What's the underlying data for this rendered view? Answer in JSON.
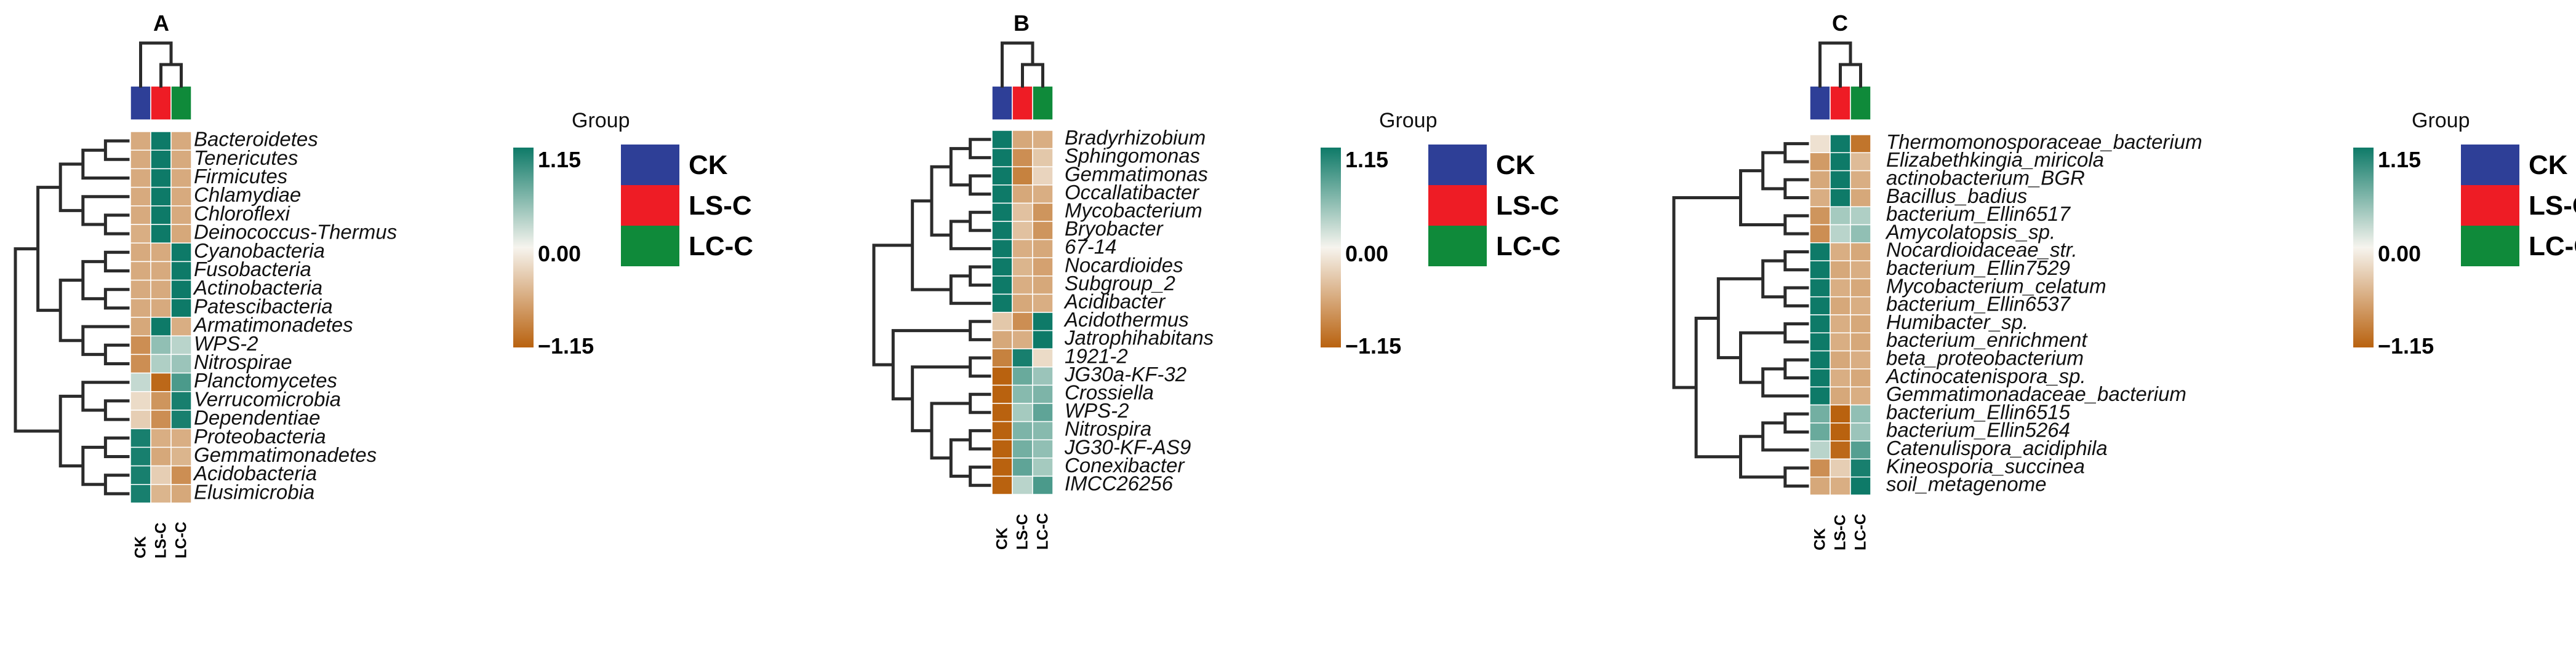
{
  "chart_data": [
    {
      "type": "heatmap",
      "title": "A",
      "columns": [
        "CK",
        "LS-C",
        "LC-C"
      ],
      "rows": [
        "Bacteroidetes",
        "Tenericutes",
        "Firmicutes",
        "Chlamydiae",
        "Chloroflexi",
        "Deinococcus-Thermus",
        "Cyanobacteria",
        "Fusobacteria",
        "Actinobacteria",
        "Patescibacteria",
        "Armatimonadetes",
        "WPS-2",
        "Nitrospirae",
        "Planctomycetes",
        "Verrucomicrobia",
        "Dependentiae",
        "Proteobacteria",
        "Gemmatimonadetes",
        "Acidobacteria",
        "Elusimicrobia"
      ],
      "values": [
        [
          -0.58,
          1.15,
          -0.58
        ],
        [
          -0.58,
          1.15,
          -0.58
        ],
        [
          -0.58,
          1.15,
          -0.58
        ],
        [
          -0.58,
          1.15,
          -0.58
        ],
        [
          -0.58,
          1.15,
          -0.58
        ],
        [
          -0.55,
          1.15,
          -0.6
        ],
        [
          -0.58,
          -0.58,
          1.15
        ],
        [
          -0.58,
          -0.58,
          1.15
        ],
        [
          -0.58,
          -0.58,
          1.15
        ],
        [
          -0.58,
          -0.58,
          1.15
        ],
        [
          -0.6,
          1.15,
          -0.55
        ],
        [
          -0.8,
          0.5,
          0.3
        ],
        [
          -0.8,
          0.35,
          0.45
        ],
        [
          0.25,
          -1.1,
          0.85
        ],
        [
          -0.2,
          -0.75,
          1.1
        ],
        [
          -0.3,
          -0.8,
          1.1
        ],
        [
          1.1,
          -0.55,
          -0.55
        ],
        [
          1.1,
          -0.6,
          -0.5
        ],
        [
          1.1,
          -0.3,
          -0.8
        ],
        [
          1.1,
          -0.5,
          -0.6
        ]
      ],
      "col_order": "CK, LS-C, LC-C (LS-C and LC-C clustered together)"
    },
    {
      "type": "heatmap",
      "title": "B",
      "columns": [
        "CK",
        "LS-C",
        "LC-C"
      ],
      "rows": [
        "Bradyrhizobium",
        "Sphingomonas",
        "Gemmatimonas",
        "Occallatibacter",
        "Mycobacterium",
        "Bryobacter",
        "67-14",
        "Nocardioides",
        "Subgroup_2",
        "Acidibacter",
        "Acidothermus",
        "Jatrophihabitans",
        "1921-2",
        "JG30a-KF-32",
        "Crossiella",
        "WPS-2",
        "Nitrospira",
        "JG30-KF-AS9",
        "Conexibacter",
        "IMCC26256"
      ],
      "values": [
        [
          1.15,
          -0.6,
          -0.55
        ],
        [
          1.15,
          -0.8,
          -0.35
        ],
        [
          1.15,
          -0.9,
          -0.25
        ],
        [
          1.15,
          -0.6,
          -0.55
        ],
        [
          1.15,
          -0.4,
          -0.75
        ],
        [
          1.15,
          -0.4,
          -0.75
        ],
        [
          1.15,
          -0.55,
          -0.6
        ],
        [
          1.15,
          -0.5,
          -0.65
        ],
        [
          1.15,
          -0.55,
          -0.6
        ],
        [
          1.15,
          -0.6,
          -0.55
        ],
        [
          -0.35,
          -0.8,
          1.15
        ],
        [
          -0.6,
          -0.55,
          1.15
        ],
        [
          -0.9,
          1.1,
          -0.2
        ],
        [
          -1.15,
          0.7,
          0.45
        ],
        [
          -1.15,
          0.55,
          0.6
        ],
        [
          -1.15,
          0.4,
          0.75
        ],
        [
          -1.15,
          0.6,
          0.55
        ],
        [
          -1.15,
          0.65,
          0.5
        ],
        [
          -1.15,
          0.75,
          0.4
        ],
        [
          -1.15,
          0.3,
          0.85
        ]
      ]
    },
    {
      "type": "heatmap",
      "title": "C",
      "columns": [
        "CK",
        "LS-C",
        "LC-C"
      ],
      "rows": [
        "Thermomonosporaceae_bacterium",
        "Elizabethkingia_miricola",
        "actinobacterium_BGR",
        "Bacillus_badius",
        "bacterium_Ellin6517",
        "Amycolatopsis_sp.",
        "Nocardioidaceae_str.",
        "bacterium_Ellin7529",
        "Mycobacterium_celatum",
        "bacterium_Ellin6537",
        "Humibacter_sp.",
        "bacterium_enrichment",
        "beta_proteobacterium",
        "Actinocatenispora_sp.",
        "Gemmatimonadaceae_bacterium",
        "bacterium_Ellin6515",
        "bacterium_Ellin5264",
        "Catenulispora_acidiphila",
        "Kineosporia_succinea",
        "soil_metagenome"
      ],
      "values": [
        [
          -0.15,
          1.15,
          -1.0
        ],
        [
          -0.7,
          1.15,
          -0.45
        ],
        [
          -0.6,
          1.15,
          -0.55
        ],
        [
          -0.55,
          1.15,
          -0.6
        ],
        [
          -0.75,
          0.4,
          0.35
        ],
        [
          -0.8,
          0.3,
          0.5
        ],
        [
          1.15,
          -0.55,
          -0.6
        ],
        [
          1.15,
          -0.6,
          -0.55
        ],
        [
          1.15,
          -0.55,
          -0.6
        ],
        [
          1.15,
          -0.6,
          -0.55
        ],
        [
          1.15,
          -0.55,
          -0.6
        ],
        [
          1.15,
          -0.55,
          -0.6
        ],
        [
          1.15,
          -0.6,
          -0.55
        ],
        [
          1.15,
          -0.55,
          -0.6
        ],
        [
          1.15,
          -0.6,
          -0.55
        ],
        [
          0.65,
          -1.15,
          0.5
        ],
        [
          0.7,
          -1.15,
          0.45
        ],
        [
          0.3,
          -1.1,
          0.8
        ],
        [
          -0.8,
          -0.3,
          1.1
        ],
        [
          -0.6,
          -0.55,
          1.15
        ]
      ]
    }
  ],
  "legend": {
    "title": "Group",
    "groups": [
      {
        "name": "CK",
        "color": "#2e3f97"
      },
      {
        "name": "LS-C",
        "color": "#ee1c25"
      },
      {
        "name": "LC-C",
        "color": "#0f8a3a"
      }
    ],
    "scale_labels": [
      "1.15",
      "0.00",
      "−1.15"
    ],
    "scale_min": -1.15,
    "scale_max": 1.15,
    "colors": {
      "high": "#0e7a68",
      "mid": "#f6f4ee",
      "low": "#b9620f"
    }
  }
}
